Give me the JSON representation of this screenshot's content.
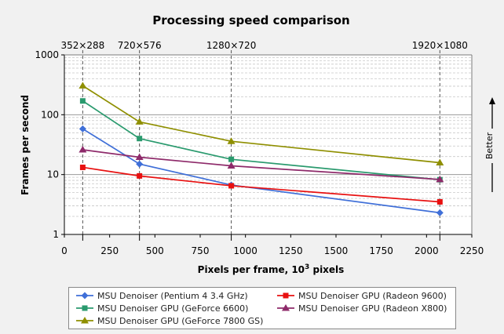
{
  "chart_data": {
    "type": "line",
    "title": "Processing speed comparison",
    "xlabel": "Pixels per frame, 10",
    "xlabel_sup": "3",
    "xlabel_suffix": " pixels",
    "ylabel": "Frames per second",
    "xlim": [
      0,
      2250
    ],
    "ylim": [
      1,
      1000
    ],
    "yscale": "log",
    "xticks": [
      0,
      250,
      500,
      750,
      1000,
      1250,
      1500,
      1750,
      2000,
      2250
    ],
    "yticks": [
      1,
      10,
      100,
      1000
    ],
    "grid": true,
    "resolutions": [
      {
        "label": "352×288",
        "x": 101.4
      },
      {
        "label": "720×576",
        "x": 414.7
      },
      {
        "label": "1280×720",
        "x": 921.6
      },
      {
        "label": "1920×1080",
        "x": 2073.6
      }
    ],
    "better_label": "Better",
    "legend_position": "bottom",
    "series": [
      {
        "name": "MSU Denoiser (Pentium 4 3.4 GHz)",
        "color": "#3f6fd8",
        "marker": "diamond",
        "x": [
          101.4,
          414.7,
          921.6,
          2073.6
        ],
        "y": [
          58,
          15,
          6.7,
          2.3
        ]
      },
      {
        "name": "MSU Denoiser GPU (Radeon 9600)",
        "color": "#e81010",
        "marker": "square",
        "x": [
          101.4,
          414.7,
          921.6,
          2073.6
        ],
        "y": [
          13.2,
          9.5,
          6.5,
          3.5
        ]
      },
      {
        "name": "MSU Denoiser GPU (GeForce 6600)",
        "color": "#2a9a6e",
        "marker": "square",
        "x": [
          101.4,
          414.7,
          921.6,
          2073.6
        ],
        "y": [
          170,
          40,
          18,
          8.2
        ]
      },
      {
        "name": "MSU Denoiser GPU (Radeon X800)",
        "color": "#8e2a6a",
        "marker": "triangle",
        "x": [
          101.4,
          414.7,
          921.6,
          2073.6
        ],
        "y": [
          26,
          19.5,
          14,
          8.3
        ]
      },
      {
        "name": "MSU Denoiser GPU (GeForce 7800 GS)",
        "color": "#8f8f00",
        "marker": "triangle",
        "x": [
          101.4,
          414.7,
          921.6,
          2073.6
        ],
        "y": [
          305,
          76,
          36,
          15.8
        ]
      }
    ]
  }
}
